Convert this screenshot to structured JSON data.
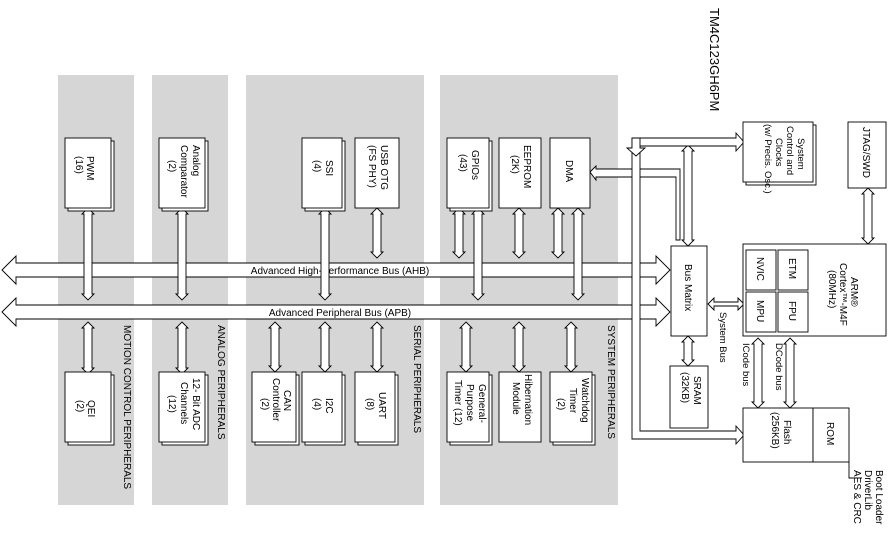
{
  "chip_title": "TM4C123GH6PM",
  "buses": {
    "ahb": "Advanced High-Performance Bus (AHB)",
    "apb": "Advanced Peripheral Bus (APB)",
    "system_bus": "System Bus",
    "icode_bus": "ICode bus",
    "dcode_bus": "DCode bus"
  },
  "groups": {
    "motion": "MOTION CONTROL PERIPHERALS",
    "analog": "ANALOG PERIPHERALS",
    "serial": "SERIAL PERIPHERALS",
    "system": "SYSTEM PERIPHERALS"
  },
  "blocks": {
    "pwm": [
      "PWM",
      "(16)"
    ],
    "qei": [
      "QEI",
      "(2)"
    ],
    "comparator": [
      "Analog",
      "Comparator",
      "(2)"
    ],
    "adc": [
      "12- Bit ADC",
      "Channels",
      "(12)"
    ],
    "ssi": [
      "SSI",
      "(4)"
    ],
    "usb": [
      "USB OTG",
      "(FS PHY)"
    ],
    "can": [
      "CAN",
      "Controller",
      "(2)"
    ],
    "i2c": [
      "I2C",
      "(4)"
    ],
    "uart": [
      "UART",
      "(8)"
    ],
    "gpio": [
      "GPIOs",
      "(43)"
    ],
    "eeprom": [
      "EEPROM",
      "(2K)"
    ],
    "dma": [
      "DMA"
    ],
    "gptimer": [
      "General-",
      "Purpose",
      "Timer (12)"
    ],
    "hibernation": [
      "Hibernation",
      "Module"
    ],
    "watchdog": [
      "Watchdog",
      "Timer",
      "(2)"
    ],
    "sysctrl": [
      "System",
      "Control and",
      "Clocks",
      "(w/ Precis. Osc.)"
    ],
    "jtag": [
      "JTAG/SWD"
    ],
    "busmatrix": [
      "Bus Matrix"
    ],
    "sram": [
      "SRAM",
      "(32KB)"
    ],
    "arm": [
      "ARM®",
      "Cortex™-M4F",
      "(80MHz)"
    ],
    "nvic": [
      "NVIC"
    ],
    "etm": [
      "ETM"
    ],
    "mpu": [
      "MPU"
    ],
    "fpu": [
      "FPU"
    ],
    "flash": [
      "Flash",
      "(256KB)"
    ],
    "rom": [
      "ROM"
    ],
    "rom_contents": [
      "Boot Loader",
      "DriverLib",
      "AES & CRC"
    ]
  }
}
